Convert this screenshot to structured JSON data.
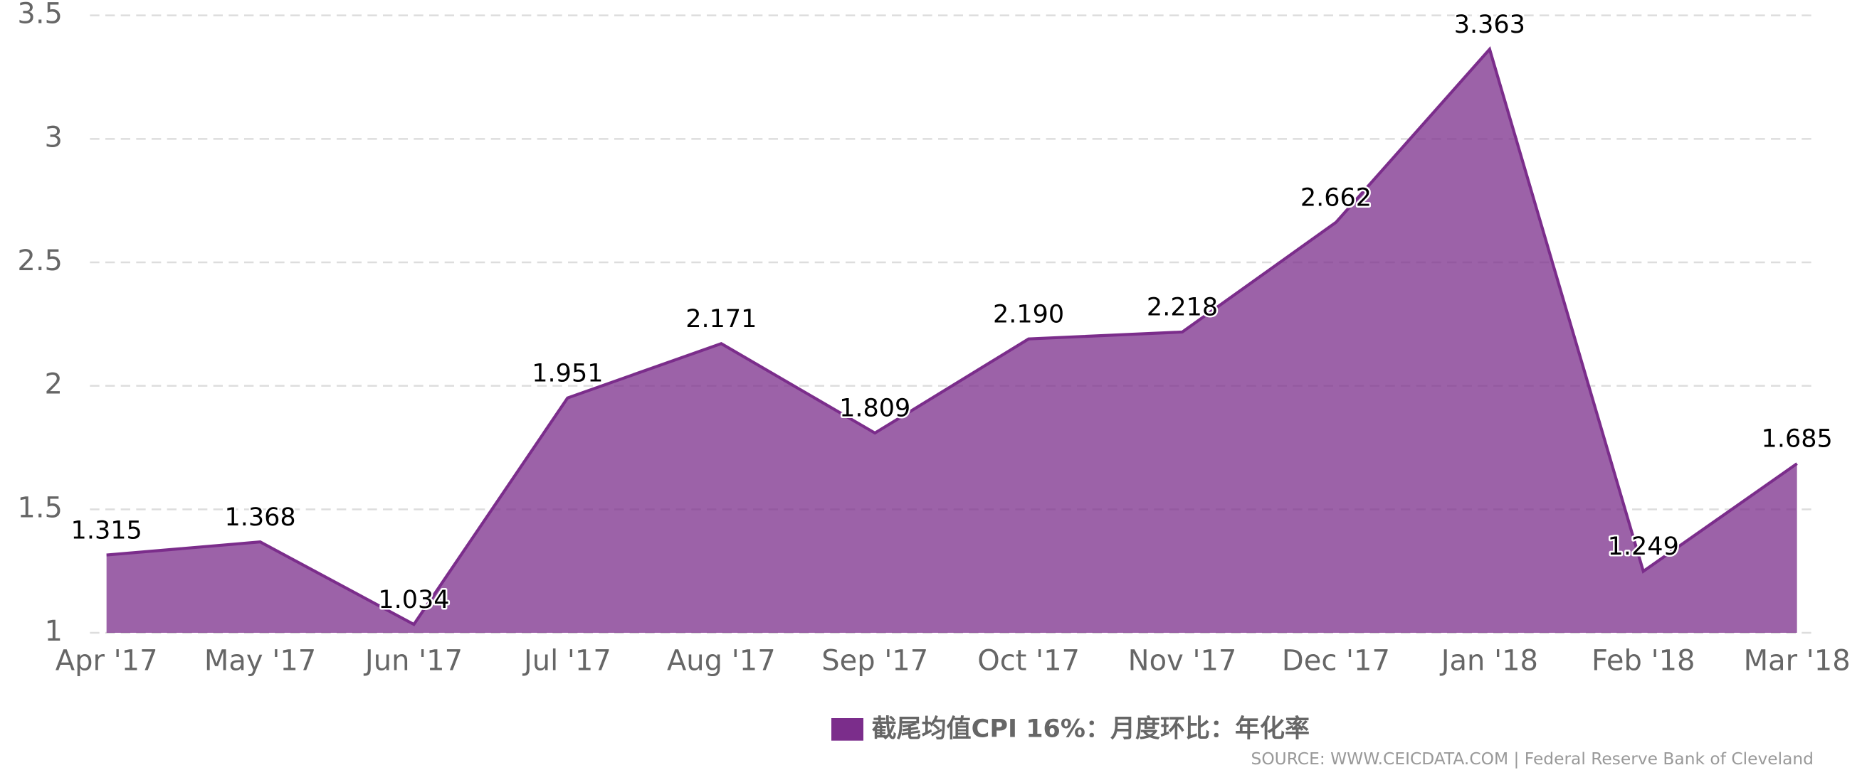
{
  "chart_data": {
    "type": "area",
    "categories": [
      "Apr '17",
      "May '17",
      "Jun '17",
      "Jul '17",
      "Aug '17",
      "Sep '17",
      "Oct '17",
      "Nov '17",
      "Dec '17",
      "Jan '18",
      "Feb '18",
      "Mar '18"
    ],
    "series": [
      {
        "name": "截尾均值CPI 16%：月度环比：年化率",
        "color": "#7b2d8b",
        "values": [
          1.315,
          1.368,
          1.034,
          1.951,
          2.171,
          1.809,
          2.19,
          2.218,
          2.662,
          3.363,
          1.249,
          1.685
        ],
        "value_labels": [
          "1.315",
          "1.368",
          "1.034",
          "1.951",
          "2.171",
          "1.809",
          "2.190",
          "2.218",
          "2.662",
          "3.363",
          "1.249",
          "1.685"
        ]
      }
    ],
    "ylim": [
      1,
      3.5
    ],
    "yticks": [
      1,
      1.5,
      2,
      2.5,
      3,
      3.5
    ],
    "grid": true,
    "source": "SOURCE: WWW.CEICDATA.COM | Federal Reserve Bank of Cleveland"
  }
}
